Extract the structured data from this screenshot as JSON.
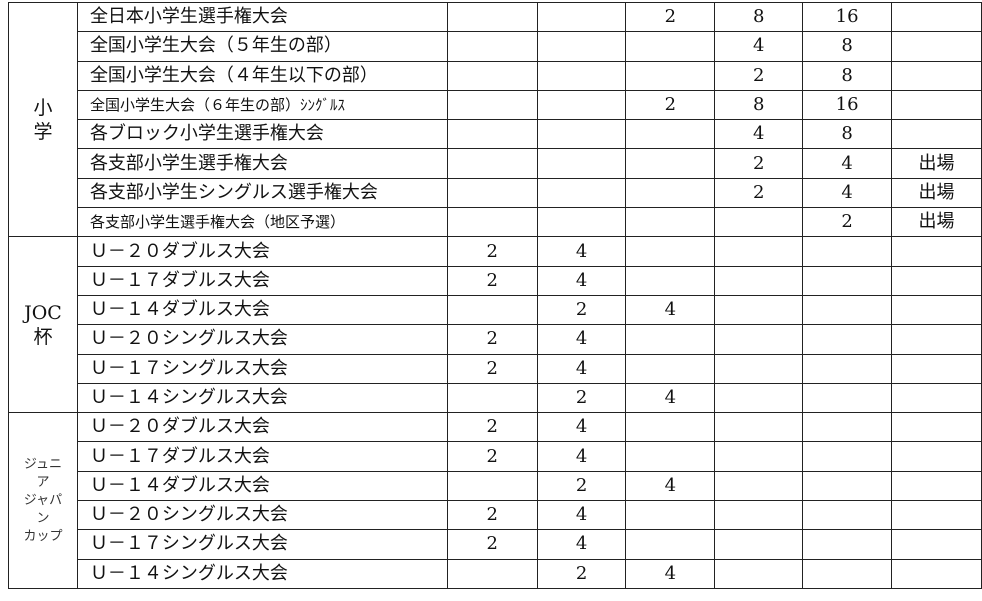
{
  "groups": [
    {
      "label": "小\n学",
      "rows": [
        {
          "name": "全日本小学生選手権大会",
          "values": [
            "",
            "",
            "2",
            "8",
            "16",
            ""
          ]
        },
        {
          "name": "全国小学生大会（５年生の部）",
          "values": [
            "",
            "",
            "",
            "4",
            "8",
            ""
          ]
        },
        {
          "name": "全国小学生大会（４年生以下の部）",
          "values": [
            "",
            "",
            "",
            "2",
            "8",
            ""
          ]
        },
        {
          "name": "全国小学生大会（６年生の部）ｼﾝｸﾞﾙｽ",
          "small": true,
          "values": [
            "",
            "",
            "2",
            "8",
            "16",
            ""
          ]
        },
        {
          "name": "各ブロック小学生選手権大会",
          "values": [
            "",
            "",
            "",
            "4",
            "8",
            ""
          ]
        },
        {
          "name": "各支部小学生選手権大会",
          "values": [
            "",
            "",
            "",
            "2",
            "4",
            "出場"
          ]
        },
        {
          "name": "各支部小学生シングルス選手権大会",
          "values": [
            "",
            "",
            "",
            "2",
            "4",
            "出場"
          ]
        },
        {
          "name": "各支部小学生選手権大会（地区予選）",
          "small": true,
          "values": [
            "",
            "",
            "",
            "",
            "2",
            "出場"
          ]
        }
      ]
    },
    {
      "label": "JOC\n杯",
      "rows": [
        {
          "name": "Ｕ－２０ダブルス大会",
          "values": [
            "2",
            "4",
            "",
            "",
            "",
            ""
          ]
        },
        {
          "name": "Ｕ－１７ダブルス大会",
          "values": [
            "2",
            "4",
            "",
            "",
            "",
            ""
          ]
        },
        {
          "name": "Ｕ－１４ダブルス大会",
          "values": [
            "",
            "2",
            "4",
            "",
            "",
            ""
          ]
        },
        {
          "name": "Ｕ－２０シングルス大会",
          "values": [
            "2",
            "4",
            "",
            "",
            "",
            ""
          ]
        },
        {
          "name": "Ｕ－１７シングルス大会",
          "values": [
            "2",
            "4",
            "",
            "",
            "",
            ""
          ]
        },
        {
          "name": "Ｕ－１４シングルス大会",
          "values": [
            "",
            "2",
            "4",
            "",
            "",
            ""
          ]
        }
      ]
    },
    {
      "label": "ジュニ\nア\nジャパ\nン\nカップ",
      "small": true,
      "rows": [
        {
          "name": "Ｕ－２０ダブルス大会",
          "values": [
            "2",
            "4",
            "",
            "",
            "",
            ""
          ]
        },
        {
          "name": "Ｕ－１７ダブルス大会",
          "values": [
            "2",
            "4",
            "",
            "",
            "",
            ""
          ]
        },
        {
          "name": "Ｕ－１４ダブルス大会",
          "values": [
            "",
            "2",
            "4",
            "",
            "",
            ""
          ]
        },
        {
          "name": "Ｕ－２０シングルス大会",
          "values": [
            "2",
            "4",
            "",
            "",
            "",
            ""
          ]
        },
        {
          "name": "Ｕ－１７シングルス大会",
          "values": [
            "2",
            "4",
            "",
            "",
            "",
            ""
          ]
        },
        {
          "name": "Ｕ－１４シングルス大会",
          "values": [
            "",
            "2",
            "4",
            "",
            "",
            ""
          ]
        }
      ]
    }
  ]
}
